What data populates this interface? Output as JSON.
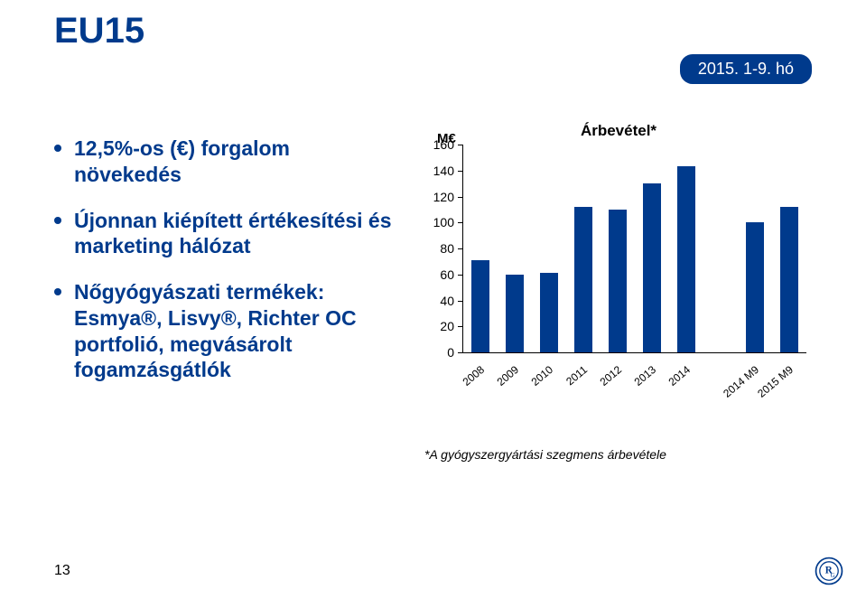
{
  "title": "EU15",
  "period_badge": "2015. 1-9. hó",
  "bullets": [
    "12,5%-os (€) forgalom növekedés",
    "Újonnan kiépített értékesítési és marketing hálózat",
    "Nőgyógyászati termékek: Esmya®, Lisvy®, Richter OC portfolió, megvásárolt fogamzásgátlók"
  ],
  "chart": {
    "type": "bar",
    "title": "Árbevétel*",
    "y_unit": "M€",
    "ylim": [
      0,
      160
    ],
    "ytick_step": 20,
    "categories": [
      "2008",
      "2009",
      "2010",
      "2011",
      "2012",
      "2013",
      "2014",
      "2014 M9",
      "2015 M9"
    ],
    "values": [
      71,
      60,
      61,
      112,
      110,
      130,
      143,
      100,
      112
    ],
    "bar_color": "#003a8c",
    "bar_width_ratio": 0.55,
    "gap_after_index": 6,
    "gap_size_ratio": 1.0,
    "background_color": "#ffffff",
    "axis_color": "#000000",
    "label_fontsize": 12,
    "tick_fontsize": 14,
    "title_fontsize": 17
  },
  "footnote": "*A gyógyszergyártási szegmens árbevétele",
  "page_number": "13",
  "logo_text": "RG",
  "logo_stroke": "#003a8c"
}
